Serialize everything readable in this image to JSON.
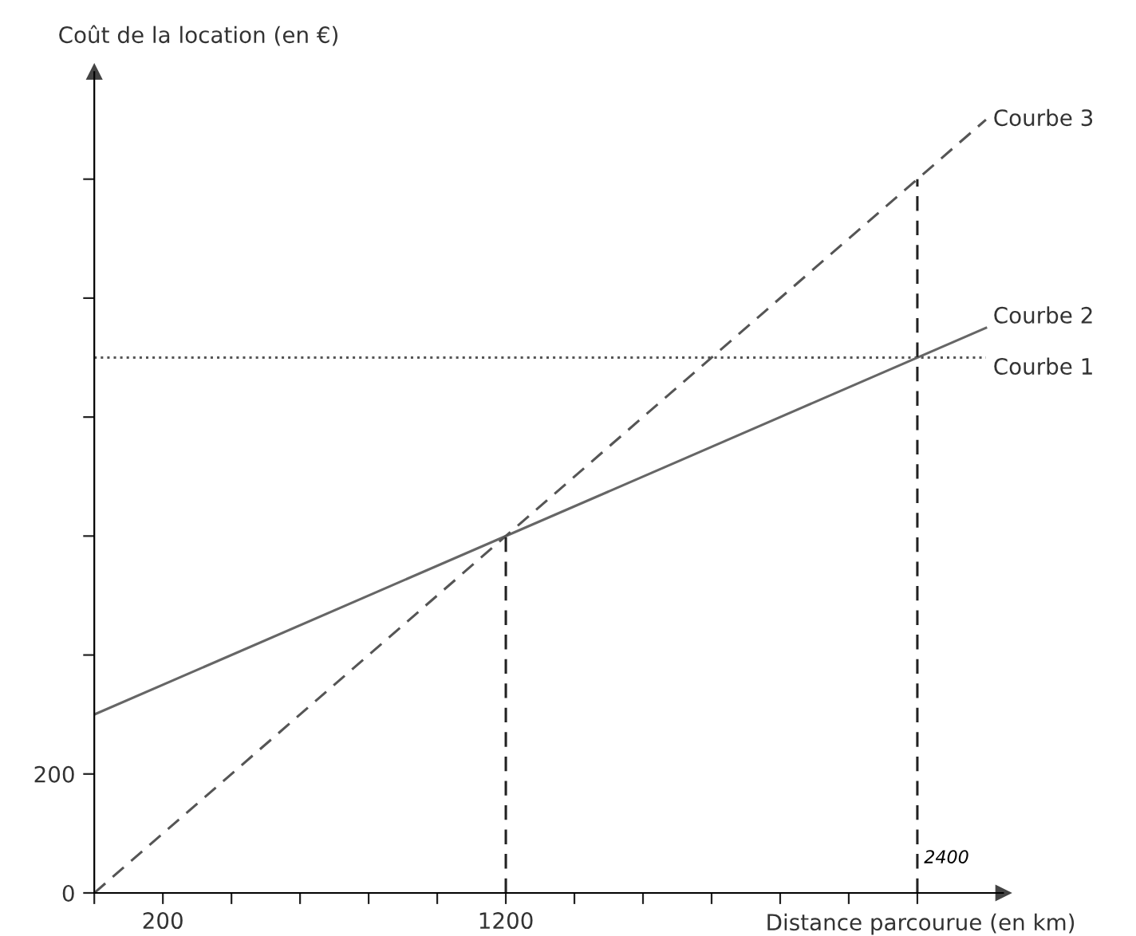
{
  "chart_data": {
    "type": "line",
    "xlabel": "Distance parcourue (en km)",
    "ylabel": "Coût de la location (en €)",
    "xlim": [
      0,
      2650
    ],
    "ylim": [
      0,
      1380
    ],
    "xticks": [
      {
        "value": 0,
        "label": null
      },
      {
        "value": 200,
        "label": "200"
      },
      {
        "value": 400,
        "label": null
      },
      {
        "value": 600,
        "label": null
      },
      {
        "value": 800,
        "label": null
      },
      {
        "value": 1000,
        "label": null
      },
      {
        "value": 1200,
        "label": "1200"
      },
      {
        "value": 1400,
        "label": null
      },
      {
        "value": 1600,
        "label": null
      },
      {
        "value": 1800,
        "label": null
      },
      {
        "value": 2000,
        "label": null
      },
      {
        "value": 2200,
        "label": null
      },
      {
        "value": 2400,
        "label": null
      }
    ],
    "yticks": [
      {
        "value": 0,
        "label": "0"
      },
      {
        "value": 200,
        "label": "200"
      },
      {
        "value": 400,
        "label": null
      },
      {
        "value": 600,
        "label": null
      },
      {
        "value": 800,
        "label": null
      },
      {
        "value": 1000,
        "label": null
      },
      {
        "value": 1200,
        "label": null
      }
    ],
    "series": [
      {
        "name": "Courbe 1",
        "color": "#555555",
        "x": [
          0,
          2600
        ],
        "values": [
          900,
          900
        ],
        "line_style": "dotted"
      },
      {
        "name": "Courbe 2",
        "color": "#666666",
        "x": [
          0,
          2600
        ],
        "values": [
          300,
          950
        ],
        "line_style": "solid"
      },
      {
        "name": "Courbe 3",
        "color": "#555555",
        "x": [
          0,
          2600
        ],
        "values": [
          0,
          1300
        ],
        "line_style": "dashed"
      },
      {
        "color": "#222222",
        "x": [
          1200,
          1200
        ],
        "values": [
          0,
          600
        ],
        "line_style": "dashed"
      },
      {
        "color": "#222222",
        "x": [
          2400,
          2400
        ],
        "values": [
          0,
          1200
        ],
        "line_style": "dashed"
      }
    ],
    "annotations": [
      {
        "text": "2400",
        "x": 2400,
        "y": 50
      }
    ],
    "grid": false,
    "legend": false
  }
}
